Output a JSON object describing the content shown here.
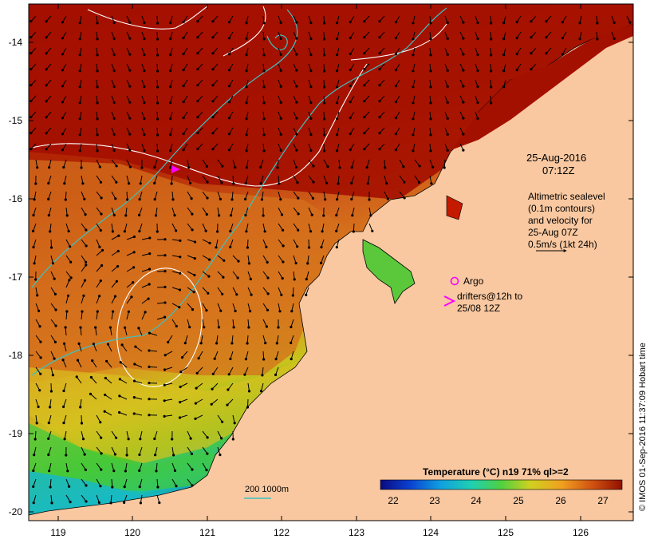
{
  "map": {
    "lat_ticks": [
      "-14",
      "-15",
      "-16",
      "-17",
      "-18",
      "-19",
      "-20"
    ],
    "lon_ticks": [
      "119",
      "120",
      "121",
      "122",
      "123",
      "124",
      "125",
      "126"
    ],
    "colors": {
      "land": "#f9c8a0",
      "sst_warm": "#a41000",
      "sst_mid": "#d86a1a",
      "contour": "#ffffff",
      "bathy": "#40c0c0",
      "drifter": "#ff00ff"
    }
  },
  "annotations": {
    "date_line1": "25-Aug-2016",
    "date_line2": "07:12Z",
    "alti_line1": "Altimetric sealevel",
    "alti_line2": "(0.1m contours)",
    "alti_line3": "and velocity for",
    "alti_line4": "25-Aug 07Z",
    "alti_line5": "0.5m/s (1kt 24h)",
    "argo_label": "Argo",
    "drifter_line1": "drifters@12h to",
    "drifter_line2": "25/08 12Z",
    "bathy_legend": "200  1000m"
  },
  "colorbar": {
    "title": "Temperature (°C) n19 71% ql>=2",
    "ticks": [
      "22",
      "23",
      "24",
      "25",
      "26",
      "27"
    ]
  },
  "credit": "© IMOS 01-Sep-2016 11:37:09 Hobart time"
}
